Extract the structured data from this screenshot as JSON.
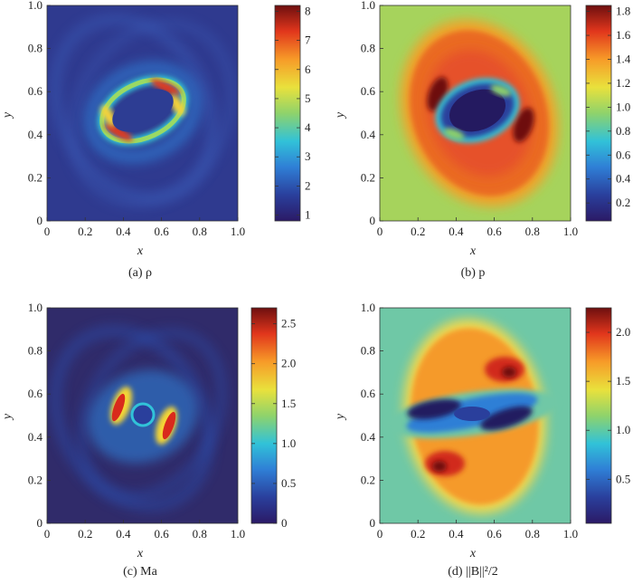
{
  "figure": {
    "panels": [
      {
        "id": "a",
        "caption": "(a)  ρ",
        "xlabel": "x",
        "ylabel": "y",
        "xticks": [
          "0",
          "0.2",
          "0.4",
          "0.6",
          "0.8",
          "1.0"
        ],
        "yticks": [
          "0",
          "0.2",
          "0.4",
          "0.6",
          "0.8",
          "1.0"
        ],
        "colorbar_ticks": [
          "1",
          "2",
          "3",
          "4",
          "5",
          "6",
          "7",
          "8"
        ]
      },
      {
        "id": "b",
        "caption": "(b)  p",
        "xlabel": "x",
        "ylabel": "y",
        "xticks": [
          "0",
          "0.2",
          "0.4",
          "0.6",
          "0.8",
          "1.0"
        ],
        "yticks": [
          "0",
          "0.2",
          "0.4",
          "0.6",
          "0.8",
          "1.0"
        ],
        "colorbar_ticks": [
          "0.2",
          "0.4",
          "0.6",
          "0.8",
          "1.0",
          "1.2",
          "1.4",
          "1.6",
          "1.8"
        ]
      },
      {
        "id": "c",
        "caption": "(c)  Ma",
        "xlabel": "x",
        "ylabel": "y",
        "xticks": [
          "0",
          "0.2",
          "0.4",
          "0.6",
          "0.8",
          "1.0"
        ],
        "yticks": [
          "0",
          "0.2",
          "0.4",
          "0.6",
          "0.8",
          "1.0"
        ],
        "colorbar_ticks": [
          "0",
          "0.5",
          "1.0",
          "1.5",
          "2.0",
          "2.5"
        ]
      },
      {
        "id": "d",
        "caption": "(d)  ||B||²/2",
        "xlabel": "x",
        "ylabel": "y",
        "xticks": [
          "0",
          "0.2",
          "0.4",
          "0.6",
          "0.8",
          "1.0"
        ],
        "yticks": [
          "0",
          "0.2",
          "0.4",
          "0.6",
          "0.8",
          "1.0"
        ],
        "colorbar_ticks": [
          "0.5",
          "1.0",
          "1.5",
          "2.0"
        ]
      }
    ]
  },
  "chart_data": [
    {
      "type": "heatmap",
      "title": "",
      "xlabel": "x",
      "ylabel": "y",
      "xlim": [
        0,
        1
      ],
      "ylim": [
        0,
        1
      ],
      "colorbar_range": [
        0.8,
        8.2
      ],
      "background_value": 1.0,
      "colormap": "jet",
      "features": "thin elliptical ring centered (0.5,0.5); max ~8 near (0.35,0.45) and (0.62,0.62)"
    },
    {
      "type": "heatmap",
      "title": "",
      "xlabel": "x",
      "ylabel": "y",
      "xlim": [
        0,
        1
      ],
      "ylim": [
        0,
        1
      ],
      "colorbar_range": [
        0.05,
        1.85
      ],
      "background_value": 1.0,
      "colormap": "jet",
      "features": "rotated oval ring ~1.5-1.8; low center ~0.1; peaks ~1.8 near (0.22,0.6) and (0.78,0.4)"
    },
    {
      "type": "heatmap",
      "title": "",
      "xlabel": "x",
      "ylabel": "y",
      "xlim": [
        0,
        1
      ],
      "ylim": [
        0,
        1
      ],
      "colorbar_range": [
        0,
        2.7
      ],
      "background_value": 0.0,
      "colormap": "jet",
      "features": "two arc-shaped maxima ~2.6 near (0.38,0.55) and (0.65,0.45)"
    },
    {
      "type": "heatmap",
      "title": "",
      "xlabel": "x",
      "ylabel": "y",
      "xlim": [
        0,
        1
      ],
      "ylim": [
        0,
        1
      ],
      "colorbar_range": [
        0.05,
        2.25
      ],
      "background_value": 0.8,
      "colormap": "jet",
      "features": "upper and lower lobes ~1.5-2.1; low band ~0.2 across center"
    }
  ]
}
